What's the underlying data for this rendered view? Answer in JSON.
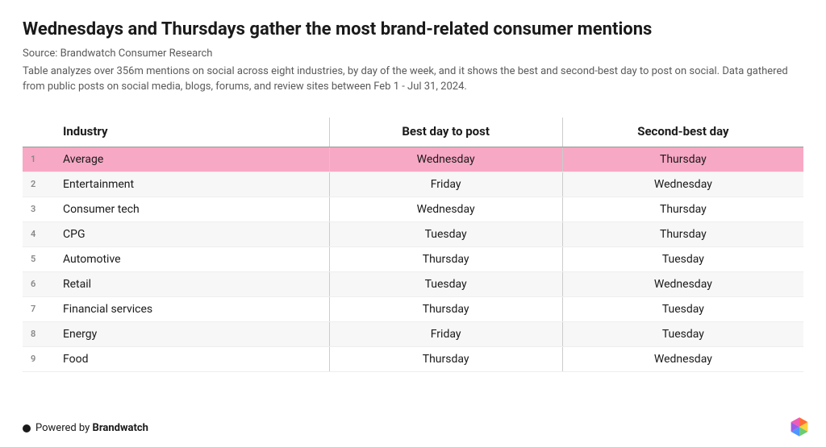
{
  "title": "Wednesdays and Thursdays gather the most brand-related consumer mentions",
  "source": "Source: Brandwatch Consumer Research",
  "description": "Table analyzes over 356m mentions on social across eight industries, by day of the week, and it shows the best and second-best day to post on social. Data gathered from public posts on social media, blogs, forums, and review sites between Feb 1 - Jul 31, 2024.",
  "table": {
    "columns": [
      "Industry",
      "Best day to post",
      "Second-best day"
    ],
    "highlight_row_index": 0,
    "highlight_color": "#f7a8c4",
    "alt_row_color": "#f7f7f7",
    "border_color": "#cccccc",
    "header_border_color": "#999999",
    "rows": [
      {
        "n": "1",
        "industry": "Average",
        "best": "Wednesday",
        "second": "Thursday"
      },
      {
        "n": "2",
        "industry": "Entertainment",
        "best": "Friday",
        "second": "Wednesday"
      },
      {
        "n": "3",
        "industry": "Consumer tech",
        "best": "Wednesday",
        "second": "Thursday"
      },
      {
        "n": "4",
        "industry": "CPG",
        "best": "Tuesday",
        "second": "Thursday"
      },
      {
        "n": "5",
        "industry": "Automotive",
        "best": "Thursday",
        "second": "Tuesday"
      },
      {
        "n": "6",
        "industry": "Retail",
        "best": "Tuesday",
        "second": "Wednesday"
      },
      {
        "n": "7",
        "industry": "Financial services",
        "best": "Thursday",
        "second": "Tuesday"
      },
      {
        "n": "8",
        "industry": "Energy",
        "best": "Friday",
        "second": "Tuesday"
      },
      {
        "n": "9",
        "industry": "Food",
        "best": "Thursday",
        "second": "Wednesday"
      }
    ]
  },
  "footer": {
    "prefix": "Powered by ",
    "brand": "Brandwatch"
  },
  "logo_colors": {
    "top": "#ff6b35",
    "right": "#ffd23f",
    "bottomRight": "#6bcb77",
    "bottom": "#4d96ff",
    "bottomLeft": "#9b5de5",
    "left": "#f15bb5"
  }
}
